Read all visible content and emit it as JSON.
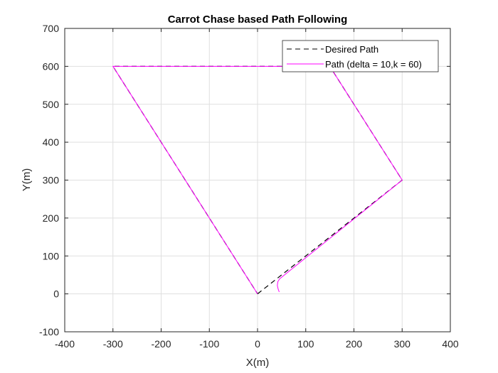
{
  "chart_data": {
    "type": "line",
    "title": "Carrot Chase based Path Following",
    "xlabel": "X(m)",
    "ylabel": "Y(m)",
    "xlim": [
      -400,
      400
    ],
    "ylim": [
      -100,
      700
    ],
    "xticks": [
      -400,
      -300,
      -200,
      -100,
      0,
      100,
      200,
      300,
      400
    ],
    "yticks": [
      -100,
      0,
      100,
      200,
      300,
      400,
      500,
      600,
      700
    ],
    "grid": true,
    "legend_position": "top-right",
    "series": [
      {
        "name": "Desired Path",
        "color": "#000000",
        "style": "dashed",
        "x": [
          0,
          300,
          150,
          -300,
          0
        ],
        "y": [
          0,
          300,
          600,
          600,
          0
        ]
      },
      {
        "name": "Path (delta = 10,k = 60)",
        "color": "#ff00ff",
        "style": "solid",
        "x": [
          45,
          43,
          41,
          42,
          46,
          300,
          150,
          -300,
          0
        ],
        "y": [
          5,
          12,
          22,
          32,
          40,
          300,
          600,
          600,
          0
        ]
      }
    ]
  }
}
